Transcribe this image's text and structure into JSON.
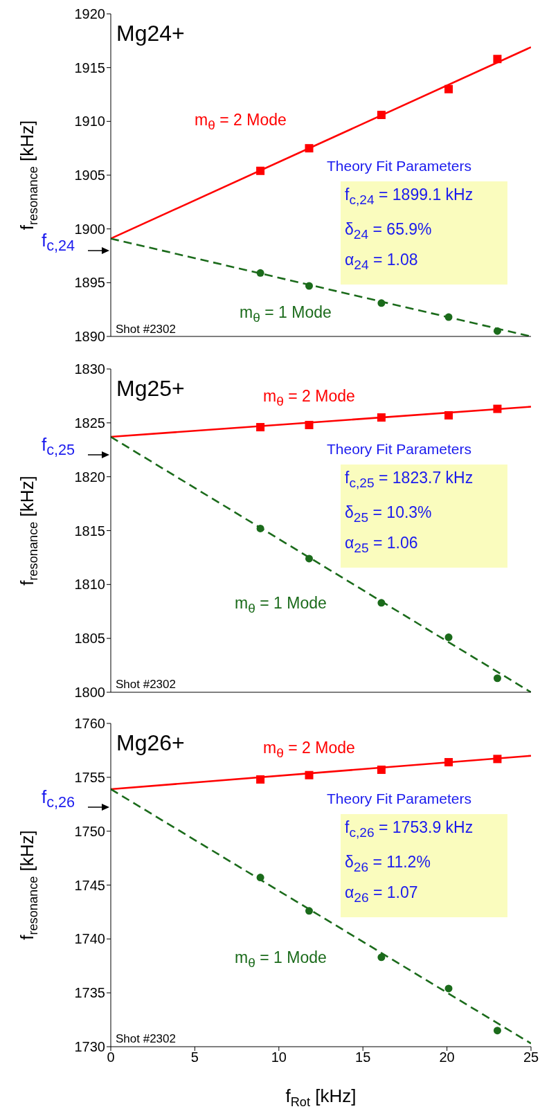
{
  "chart_data": [
    {
      "type": "scatter",
      "title": "Mg24+",
      "ylabel": "f$_{resonance}$ [kHz]",
      "xlim": [
        0,
        25
      ],
      "xticks": [
        0,
        5,
        10,
        15,
        20,
        25
      ],
      "ylim": [
        1890,
        1920
      ],
      "yticks": [
        1890,
        1895,
        1900,
        1905,
        1910,
        1915,
        1920
      ],
      "tick_labels": "y",
      "grid": false,
      "legend": false,
      "series": [
        {
          "marker": "square",
          "color": "#ff0000",
          "x": [
            8.9,
            11.8,
            16.1,
            20.1,
            23.0
          ],
          "values": [
            1905.4,
            1907.5,
            1910.6,
            1913.0,
            1915.8
          ]
        },
        {
          "type": "line",
          "name": "m$_{θ}$ = 2 Mode",
          "marker": "none",
          "line_style": "solid",
          "color": "#ff0000",
          "x": [
            0,
            25
          ],
          "values": [
            1899.1,
            1916.9
          ]
        },
        {
          "marker": "circle",
          "color": "#1b6b1b",
          "x": [
            8.9,
            11.8,
            16.1,
            20.1,
            23.0
          ],
          "values": [
            1895.9,
            1894.7,
            1893.1,
            1891.8,
            1890.5
          ]
        },
        {
          "type": "line",
          "name": "m$_{θ}$ = 1 Mode",
          "marker": "none",
          "line_style": "dashed",
          "color": "#1b6b1b",
          "x": [
            0,
            25
          ],
          "values": [
            1899.1,
            1890.0
          ]
        }
      ],
      "annotations": [
        "Shot #2302",
        "Theory Fit Parameters",
        "f$_{c,24}$ = 1899.1 kHz",
        "δ$_{24}$ = 65.9%",
        "α$_{24}$ = 1.08",
        "f$_{c,24}$"
      ]
    },
    {
      "type": "scatter",
      "title": "Mg25+",
      "ylabel": "f$_{resonance}$ [kHz]",
      "xlim": [
        0,
        25
      ],
      "xticks": [
        0,
        5,
        10,
        15,
        20,
        25
      ],
      "ylim": [
        1800,
        1830
      ],
      "yticks": [
        1800,
        1805,
        1810,
        1815,
        1820,
        1825,
        1830
      ],
      "tick_labels": "y",
      "grid": false,
      "legend": false,
      "series": [
        {
          "marker": "square",
          "color": "#ff0000",
          "x": [
            8.9,
            11.8,
            16.1,
            20.1,
            23.0
          ],
          "values": [
            1824.6,
            1824.8,
            1825.5,
            1825.7,
            1826.3
          ]
        },
        {
          "type": "line",
          "name": "m$_{θ}$ = 2 Mode",
          "marker": "none",
          "line_style": "solid",
          "color": "#ff0000",
          "x": [
            0,
            25
          ],
          "values": [
            1823.7,
            1826.5
          ]
        },
        {
          "marker": "circle",
          "color": "#1b6b1b",
          "x": [
            8.9,
            11.8,
            16.1,
            20.1,
            23.0
          ],
          "values": [
            1815.2,
            1812.4,
            1808.3,
            1805.1,
            1801.3
          ]
        },
        {
          "type": "line",
          "name": "m$_{θ}$ = 1 Mode",
          "marker": "none",
          "line_style": "dashed",
          "color": "#1b6b1b",
          "x": [
            0,
            25
          ],
          "values": [
            1823.7,
            1800.0
          ]
        }
      ],
      "annotations": [
        "Shot #2302",
        "Theory Fit Parameters",
        "f$_{c,25}$ = 1823.7 kHz",
        "δ$_{25}$ = 10.3%",
        "α$_{25}$ = 1.06",
        "f$_{c,25}$"
      ]
    },
    {
      "type": "scatter",
      "title": "Mg26+",
      "xlabel": "f$_{Rot}$ [kHz]",
      "ylabel": "f$_{resonance}$ [kHz]",
      "xlim": [
        0,
        25
      ],
      "xticks": [
        0,
        5,
        10,
        15,
        20,
        25
      ],
      "ylim": [
        1730,
        1760
      ],
      "yticks": [
        1730,
        1735,
        1740,
        1745,
        1750,
        1755,
        1760
      ],
      "grid": false,
      "legend": false,
      "series": [
        {
          "marker": "square",
          "color": "#ff0000",
          "x": [
            8.9,
            11.8,
            16.1,
            20.1,
            23.0
          ],
          "values": [
            1754.8,
            1755.2,
            1755.7,
            1756.4,
            1756.7
          ]
        },
        {
          "type": "line",
          "name": "m$_{θ}$ = 2 Mode",
          "marker": "none",
          "line_style": "solid",
          "color": "#ff0000",
          "x": [
            0,
            25
          ],
          "values": [
            1753.9,
            1757.0
          ]
        },
        {
          "marker": "circle",
          "color": "#1b6b1b",
          "x": [
            8.9,
            11.8,
            16.1,
            20.1,
            23.0
          ],
          "values": [
            1745.7,
            1742.6,
            1738.3,
            1735.4,
            1731.5
          ]
        },
        {
          "type": "line",
          "name": "m$_{θ}$ = 1 Mode",
          "marker": "none",
          "line_style": "dashed",
          "color": "#1b6b1b",
          "x": [
            0,
            25
          ],
          "values": [
            1753.9,
            1730.3
          ]
        }
      ],
      "annotations": [
        "Shot #2302",
        "Theory Fit Parameters",
        "f$_{c,26}$ = 1753.9 kHz",
        "δ$_{26}$ = 11.2%",
        "α$_{26}$ = 1.07",
        "f$_{c,26}$"
      ]
    }
  ]
}
